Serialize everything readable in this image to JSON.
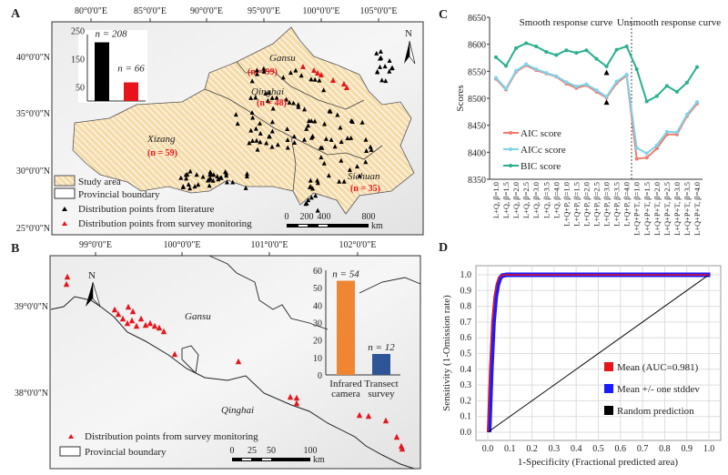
{
  "panels": {
    "a": {
      "label": "A",
      "lon_ticks": [
        "80°0'0\"E",
        "85°0'0\"E",
        "90°0'0\"E",
        "95°0'0\"E",
        "100°0'0\"E",
        "105°0'0\"E"
      ],
      "lat_ticks": [
        "40°0'0\"N",
        "35°0'0\"N",
        "30°0'0\"N",
        "25°0'0\"N"
      ],
      "regions": [
        {
          "name": "Gansu",
          "count": "(n = 99)"
        },
        {
          "name": "Qinghai",
          "count": "(n = 48)"
        },
        {
          "name": "Xizang",
          "count": "(n = 59)"
        },
        {
          "name": "Sichuan",
          "count": "(n = 35)"
        }
      ],
      "legend": [
        "Study area",
        "Provincial boundary",
        "Distribution points from literature",
        "Distribution points from survey monitoring"
      ],
      "scale_labels": [
        "0",
        "200",
        "400",
        "800"
      ],
      "scale_unit": "km",
      "north": "N"
    },
    "b": {
      "label": "B",
      "lon_ticks": [
        "99°0'0\"E",
        "100°0'0\"E",
        "101°0'0\"E",
        "102°0'0\"E"
      ],
      "lat_ticks": [
        "39°0'0\"N",
        "38°0'0\"N"
      ],
      "regions": [
        "Gansu",
        "Qinghai"
      ],
      "legend": [
        "Distribution points from survey monitoring",
        "Provincial boundary"
      ],
      "scale_labels": [
        "0",
        "25",
        "50",
        "100"
      ],
      "scale_unit": "km",
      "north": "N"
    },
    "c": {
      "label": "C",
      "annotations": [
        "Smooth response curve",
        "Unsmooth response curve"
      ]
    },
    "d": {
      "label": "D"
    }
  },
  "colors": {
    "literature": "#000000",
    "survey": "#e8141b",
    "study_area": "#f4d9a8",
    "aic": "#f07b72",
    "aicc": "#7fd3e8",
    "bic": "#2aaf8e",
    "infrared": "#f08632",
    "transect": "#2e5597",
    "roc_mean": "#e8141b",
    "roc_sd": "#1a1aff",
    "random": "#000000"
  },
  "chart_data": [
    {
      "id": "a-inset",
      "type": "bar",
      "categories": [
        "Distribution points from literature",
        "Distribution points from survey monitoring"
      ],
      "values": [
        208,
        66
      ],
      "data_labels": [
        "n = 208",
        "n = 66"
      ],
      "yticks": [
        "250",
        "150",
        "50"
      ],
      "ylim": [
        0,
        250
      ]
    },
    {
      "id": "b-inset",
      "type": "bar",
      "categories": [
        "Infrared camera",
        "Transect survey"
      ],
      "values": [
        54,
        12
      ],
      "data_labels": [
        "n = 54",
        "n = 12"
      ],
      "yticks": [
        "0",
        "10",
        "20",
        "30",
        "40",
        "50",
        "60"
      ],
      "ylim": [
        0,
        60
      ]
    },
    {
      "id": "c",
      "type": "line",
      "ylabel": "Scores",
      "ylim": [
        8350,
        8650
      ],
      "yticks": [
        "8350",
        "8400",
        "8450",
        "8500",
        "8550",
        "8600",
        "8650"
      ],
      "categories": [
        "L+Q, β=1.0",
        "L+Q, β=1.5",
        "L+Q, β=2.0",
        "L+Q, β=2.5",
        "L+Q, β=3.0",
        "L+Q, β=3.5",
        "L+Q, β=4.0",
        "L+Q+P, β=1.0",
        "L+Q+P, β=1.5",
        "L+Q+P, β=2.0",
        "L+Q+P, β=2.5",
        "L+Q+P, β=3.0",
        "L+Q+P, β=3.5",
        "L+Q+P, β=4.0",
        "L+Q+P+T, β=1.0",
        "L+Q+P+T, β=1.5",
        "L+Q+P+T, β=2.0",
        "L+Q+P+T, β=2.5",
        "L+Q+P+T, β=3.0",
        "L+Q+P+T, β=3.5",
        "L+Q+P+T, β=4.0"
      ],
      "series": [
        {
          "name": "AIC score",
          "values": [
            8536,
            8516,
            8549,
            8561,
            8552,
            8546,
            8540,
            8527,
            8519,
            8524,
            8512,
            8501,
            8528,
            8542,
            8388,
            8390,
            8407,
            8433,
            8433,
            8467,
            8490
          ]
        },
        {
          "name": "AICc score",
          "values": [
            8538,
            8518,
            8551,
            8563,
            8554,
            8547,
            8541,
            8530,
            8522,
            8526,
            8515,
            8503,
            8531,
            8544,
            8408,
            8398,
            8413,
            8438,
            8437,
            8470,
            8493
          ]
        },
        {
          "name": "BIC score",
          "values": [
            8576,
            8560,
            8593,
            8602,
            8596,
            8586,
            8580,
            8589,
            8584,
            8589,
            8573,
            8559,
            8590,
            8596,
            8554,
            8494,
            8504,
            8523,
            8512,
            8529,
            8558
          ]
        }
      ],
      "markers": [
        "L+Q+P, β=3.0"
      ],
      "legend": "bottom-left"
    },
    {
      "id": "d",
      "type": "line",
      "xlabel": "1-Specificity (Fractional predicted area)",
      "ylabel": "Sensitivity (1-Omission rate)",
      "xlim": [
        0,
        1
      ],
      "ylim": [
        0,
        1
      ],
      "xticks": [
        "0.0",
        "0.1",
        "0.2",
        "0.3",
        "0.4",
        "0.5",
        "0.6",
        "0.7",
        "0.8",
        "0.9",
        "1.0"
      ],
      "yticks": [
        "0.0",
        "0.1",
        "0.2",
        "0.3",
        "0.4",
        "0.5",
        "0.6",
        "0.7",
        "0.8",
        "0.9",
        "1.0"
      ],
      "grid": true,
      "series": [
        {
          "name": "Mean (AUC=0.981)",
          "x": [
            0,
            0.01,
            0.02,
            0.03,
            0.04,
            0.05,
            0.06,
            0.08,
            1.0
          ],
          "y": [
            0,
            0.4,
            0.7,
            0.86,
            0.94,
            0.98,
            0.995,
            1.0,
            1.0
          ]
        },
        {
          "name": "Mean +/- one stddev",
          "x": [
            0,
            0.01,
            0.02,
            0.03,
            0.04,
            0.05,
            0.06,
            0.08,
            1.0
          ],
          "y": [
            0,
            0.4,
            0.7,
            0.86,
            0.94,
            0.98,
            0.995,
            1.0,
            1.0
          ]
        },
        {
          "name": "Random prediction",
          "x": [
            0,
            1
          ],
          "y": [
            0,
            1
          ]
        }
      ],
      "legend": "center-right"
    }
  ]
}
